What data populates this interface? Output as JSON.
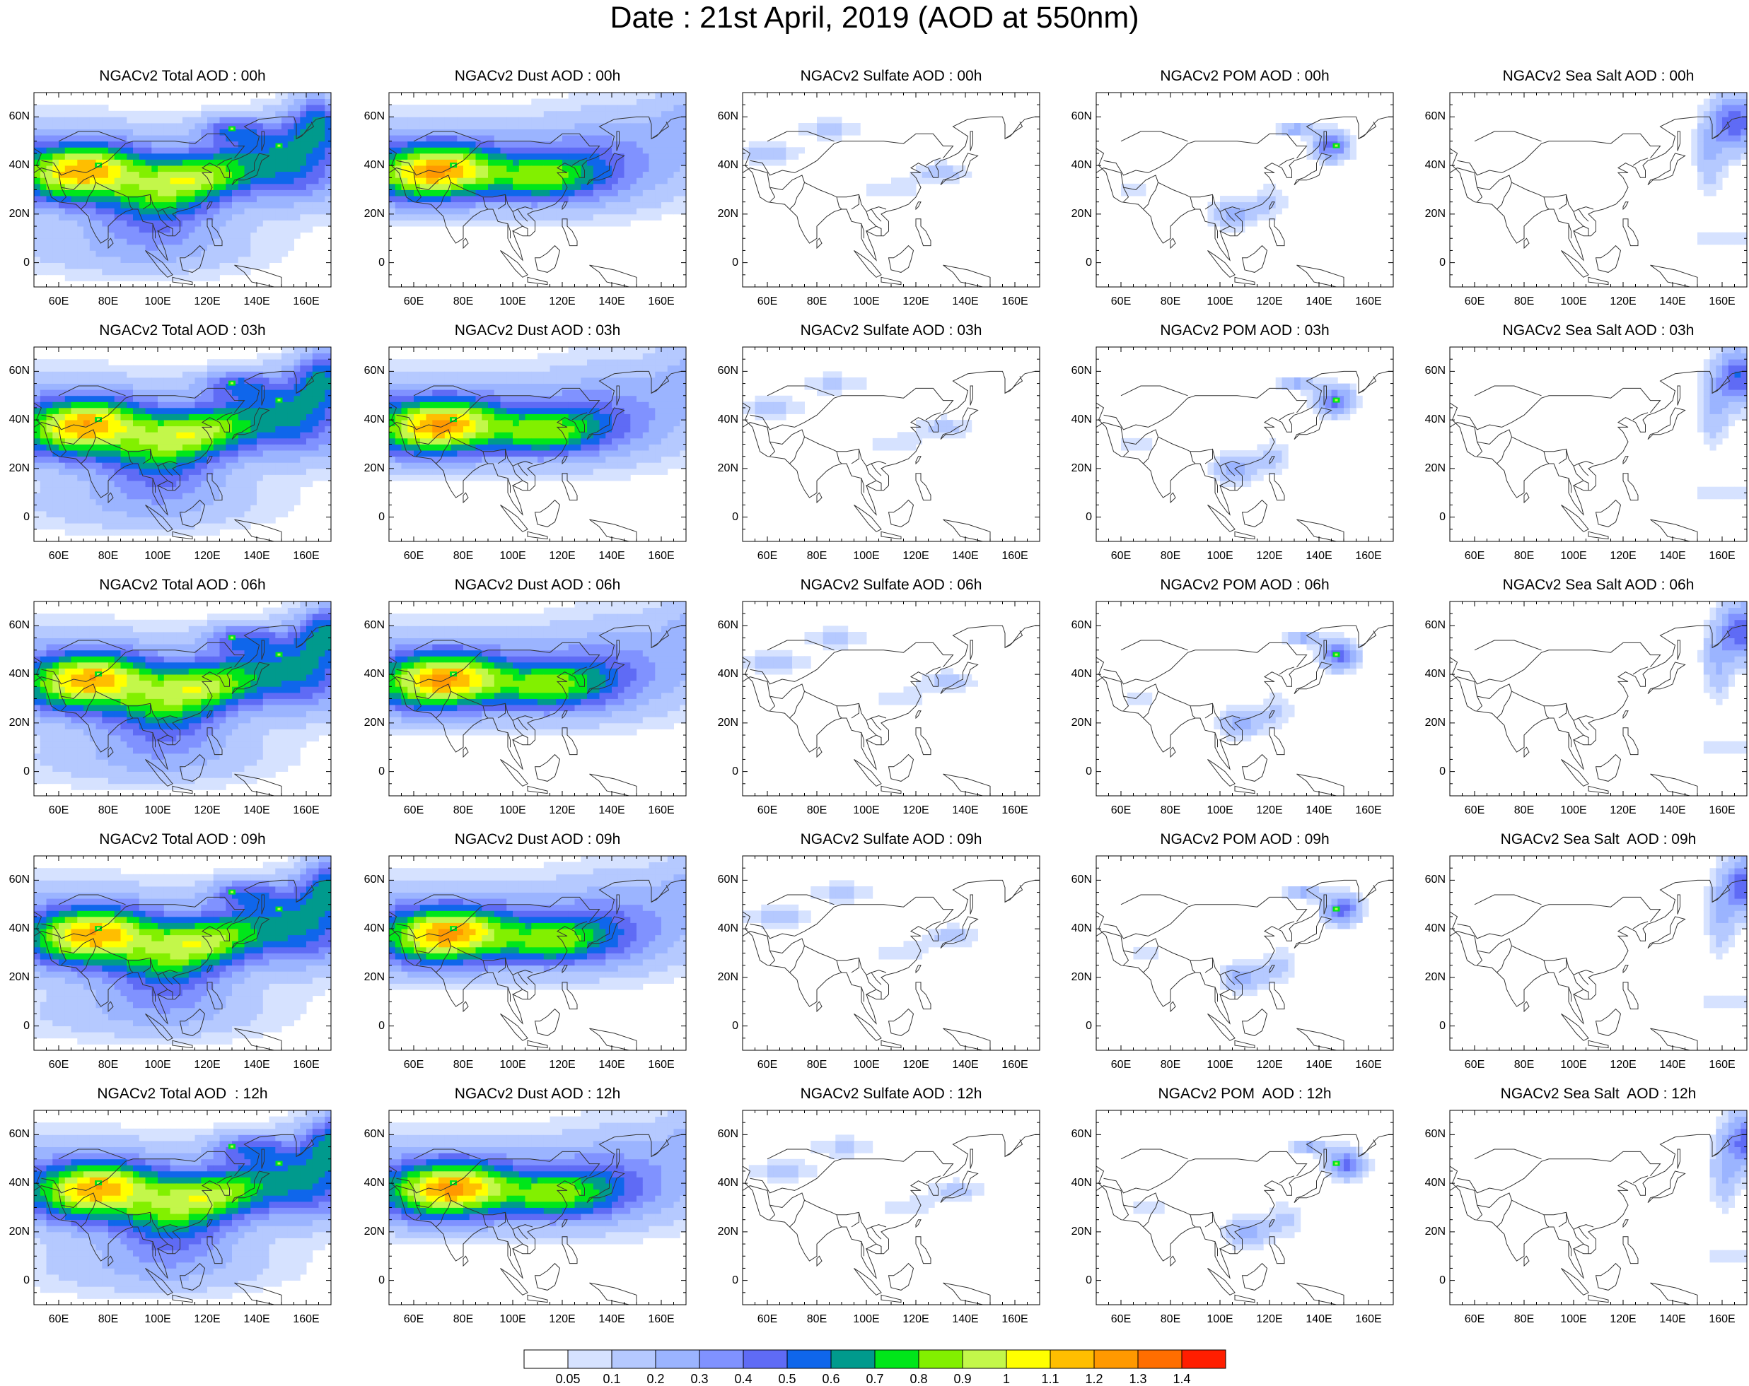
{
  "title": "Date : 21st April, 2019 (AOD at 550nm)",
  "axes": {
    "lat_ticks": [
      "60N",
      "40N",
      "20N",
      "0"
    ],
    "lon_ticks": [
      "60E",
      "80E",
      "100E",
      "120E",
      "140E",
      "160E"
    ]
  },
  "panels": [
    [
      "NGACv2 Total AOD : 00h",
      "NGACv2 Dust AOD : 00h",
      "NGACv2 Sulfate AOD : 00h",
      "NGACv2 POM AOD : 00h",
      "NGACv2 Sea Salt AOD : 00h"
    ],
    [
      "NGACv2 Total AOD : 03h",
      "NGACv2 Dust AOD : 03h",
      "NGACv2 Sulfate AOD : 03h",
      "NGACv2 POM AOD : 03h",
      "NGACv2 Sea Salt AOD : 03h"
    ],
    [
      "NGACv2 Total AOD : 06h",
      "NGACv2 Dust AOD : 06h",
      "NGACv2 Sulfate AOD : 06h",
      "NGACv2 POM AOD : 06h",
      "NGACv2 Sea Salt AOD : 06h"
    ],
    [
      "NGACv2 Total AOD : 09h",
      "NGACv2 Dust AOD : 09h",
      "NGACv2 Sulfate AOD : 09h",
      "NGACv2 POM AOD : 09h",
      "NGACv2 Sea Salt  AOD : 09h"
    ],
    [
      "NGACv2 Total AOD  : 12h",
      "NGACv2 Dust AOD : 12h",
      "NGACv2 Sulfate AOD : 12h",
      "NGACv2 POM  AOD : 12h",
      "NGACv2 Sea Salt  AOD : 12h"
    ]
  ],
  "colorbar": {
    "labels": [
      "0.05",
      "0.1",
      "0.2",
      "0.3",
      "0.4",
      "0.5",
      "0.6",
      "0.7",
      "0.8",
      "0.9",
      "1",
      "1.1",
      "1.2",
      "1.3",
      "1.4"
    ],
    "colors": [
      "#ffffff",
      "#d6e2ff",
      "#b5c9ff",
      "#9bb4ff",
      "#8092ff",
      "#5f6bf5",
      "#0f66eb",
      "#009a8d",
      "#00e61a",
      "#82f000",
      "#c3f74a",
      "#ffff00",
      "#ffbe00",
      "#ff9900",
      "#ff6e00",
      "#ff1e00"
    ]
  }
}
